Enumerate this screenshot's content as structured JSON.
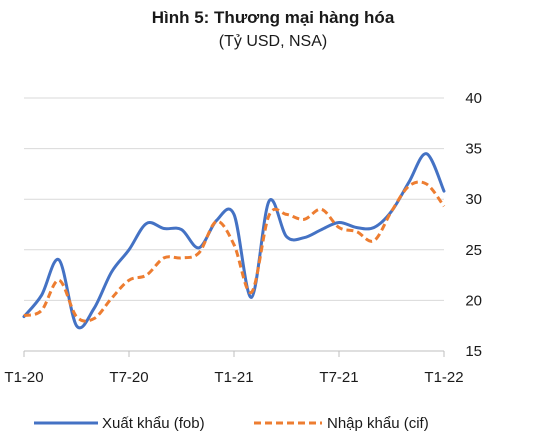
{
  "chart_data": {
    "type": "line",
    "title": "Hình 5: Thương mại hàng hóa",
    "subtitle": "(Tỷ USD, NSA)",
    "x_tick_labels": [
      "T1-20",
      "T7-20",
      "T1-21",
      "T7-21",
      "T1-22"
    ],
    "ylim": [
      15,
      40
    ],
    "y_ticks": [
      15,
      20,
      25,
      30,
      35,
      40
    ],
    "y_axis_position": "right",
    "grid": "horizontal",
    "legend_position": "bottom",
    "series": [
      {
        "name": "Xuất khẩu (fob)",
        "color": "#4472C4",
        "style": "solid",
        "values": [
          18.4,
          20.5,
          24.0,
          17.5,
          19.2,
          22.8,
          25.0,
          27.6,
          27.1,
          27.0,
          25.2,
          27.9,
          28.5,
          20.3,
          29.8,
          26.3,
          26.2,
          27.0,
          27.7,
          27.2,
          27.2,
          28.8,
          31.7,
          34.5,
          30.8
        ],
        "color_hex": "#4472C4"
      },
      {
        "name": "Nhập khẩu (cif)",
        "color": "#ED7D31",
        "style": "dashed",
        "values": [
          18.5,
          19.0,
          22.0,
          18.4,
          18.2,
          20.2,
          22.0,
          22.5,
          24.2,
          24.2,
          24.7,
          27.8,
          25.5,
          20.8,
          28.4,
          28.5,
          28.0,
          29.0,
          27.2,
          26.8,
          25.9,
          28.8,
          31.3,
          31.5,
          29.3
        ],
        "color_hex": "#ED7D31"
      }
    ]
  }
}
